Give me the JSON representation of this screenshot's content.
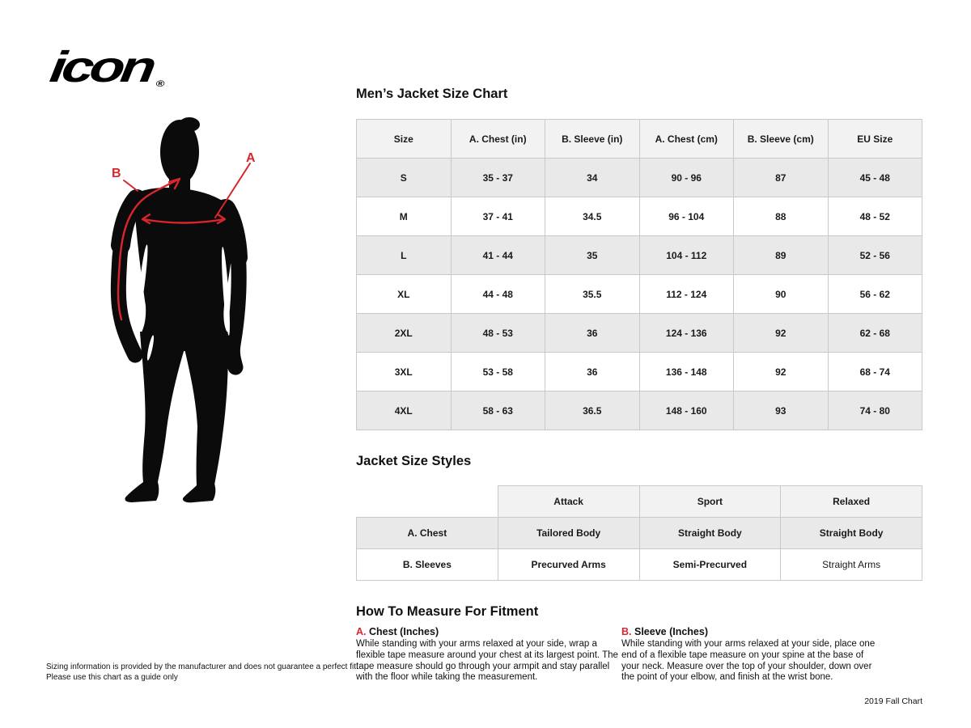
{
  "logo": {
    "text": "icon",
    "registered": "®"
  },
  "diagram": {
    "label_a": "A",
    "label_b": "B"
  },
  "size_chart": {
    "title": "Men’s Jacket Size Chart",
    "columns": [
      "Size",
      "A. Chest (in)",
      "B. Sleeve (in)",
      "A. Chest (cm)",
      "B. Sleeve (cm)",
      "EU Size"
    ],
    "rows": [
      [
        "S",
        "35 - 37",
        "34",
        "90 - 96",
        "87",
        "45 - 48"
      ],
      [
        "M",
        "37 - 41",
        "34.5",
        "96 - 104",
        "88",
        "48 - 52"
      ],
      [
        "L",
        "41 - 44",
        "35",
        "104 - 112",
        "89",
        "52 - 56"
      ],
      [
        "XL",
        "44 - 48",
        "35.5",
        "112 - 124",
        "90",
        "56 - 62"
      ],
      [
        "2XL",
        "48 - 53",
        "36",
        "124 - 136",
        "92",
        "62 - 68"
      ],
      [
        "3XL",
        "53 - 58",
        "36",
        "136 - 148",
        "92",
        "68 - 74"
      ],
      [
        "4XL",
        "58 - 63",
        "36.5",
        "148 - 160",
        "93",
        "74 - 80"
      ]
    ]
  },
  "styles_chart": {
    "title": "Jacket Size Styles",
    "columns": [
      "",
      "Attack",
      "Sport",
      "Relaxed"
    ],
    "rows": [
      [
        "A. Chest",
        "Tailored Body",
        "Straight Body",
        "Straight Body"
      ],
      [
        "B. Sleeves",
        "Precurved Arms",
        "Semi-Precurved",
        "Straight Arms"
      ]
    ]
  },
  "measure": {
    "title": "How To Measure For Fitment",
    "sections": [
      {
        "prefix": "A.",
        "heading": "Chest (Inches)",
        "body": "While standing with your arms relaxed at your side, wrap a flexible tape measure around your chest at its largest point. The tape measure should go through your armpit and stay parallel with the floor while taking the measurement."
      },
      {
        "prefix": "B.",
        "heading": "Sleeve (Inches)",
        "body": "While standing with your arms relaxed at your side, place one end of a flexible tape measure on your spine at the base of your neck. Measure over the top of your shoulder, down over the point of your elbow, and finish at the wrist bone."
      }
    ]
  },
  "footer": {
    "disclaimer_line1": "Sizing information is provided by the manufacturer and does not guarantee a perfect fit.",
    "disclaimer_line2": "Please use this chart as a guide only",
    "chart_version": "2019 Fall Chart"
  },
  "colors": {
    "accent_red": "#d8262c",
    "silhouette_black": "#0b0b0b",
    "table_header_bg": "#f2f2f2",
    "table_alt_row_bg": "#e9e9e9",
    "table_border": "#c9c9c9"
  }
}
